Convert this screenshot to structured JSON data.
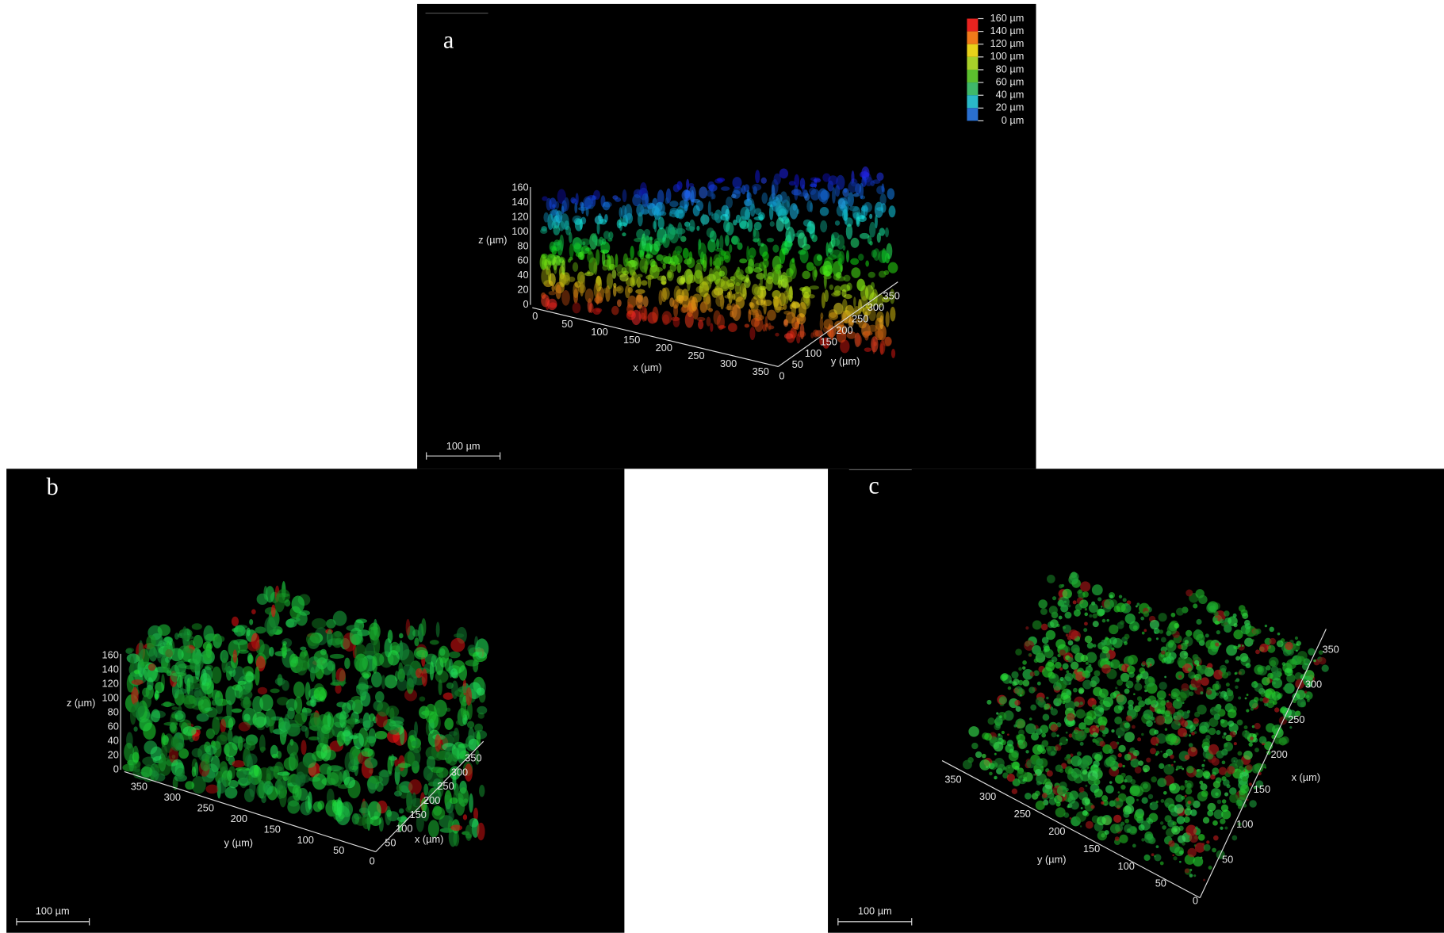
{
  "panels": [
    {
      "label": "a",
      "scale_bar": "100 µm",
      "axes": [
        {
          "title": "z (µm)",
          "ticks": [
            0,
            20,
            40,
            60,
            80,
            100,
            120,
            140,
            160
          ]
        },
        {
          "title": "x (µm)",
          "ticks": [
            0,
            50,
            100,
            150,
            200,
            250,
            300,
            350
          ]
        },
        {
          "title": "y (µm)",
          "ticks": [
            0,
            50,
            100,
            150,
            200,
            250,
            300,
            350
          ]
        }
      ],
      "legend": [
        "160 µm",
        "140 µm",
        "120 µm",
        "100 µm",
        "80 µm",
        "60 µm",
        "40 µm",
        "20 µm",
        "0 µm"
      ]
    },
    {
      "label": "b",
      "scale_bar": "100 µm",
      "axes": [
        {
          "title": "z (µm)",
          "ticks": [
            0,
            20,
            40,
            60,
            80,
            100,
            120,
            140,
            160
          ]
        },
        {
          "title": "y (µm)",
          "ticks": [
            350,
            300,
            250,
            200,
            150,
            100,
            50,
            0
          ]
        },
        {
          "title": "x (µm)",
          "ticks": [
            50,
            100,
            150,
            200,
            250,
            300,
            350
          ]
        }
      ]
    },
    {
      "label": "c",
      "scale_bar": "100 µm",
      "axes": [
        {
          "title": "y (µm)",
          "ticks": [
            350,
            300,
            250,
            200,
            150,
            100,
            50,
            0
          ]
        },
        {
          "title": "x (µm)",
          "ticks": [
            50,
            100,
            150,
            200,
            250,
            300,
            350
          ]
        }
      ]
    }
  ]
}
